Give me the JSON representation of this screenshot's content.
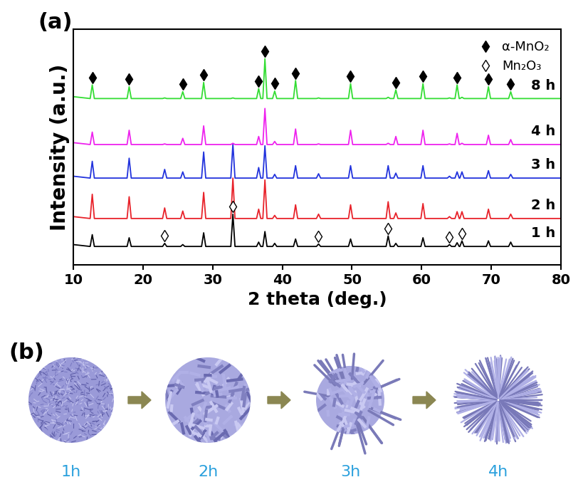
{
  "chart_data": {
    "type": "line",
    "x_label": "2 theta (deg.)",
    "y_label": "Intensity (a.u.)",
    "xlim": [
      10,
      80
    ],
    "xticks": [
      10,
      20,
      30,
      40,
      50,
      60,
      70,
      80
    ],
    "ylim": [
      0,
      38
    ],
    "yticks": [],
    "tick_labels": "x",
    "grid": false,
    "legend": "upper right",
    "x": [
      10,
      12.4,
      12.7,
      13.0,
      17.7,
      18.0,
      18.3,
      22.8,
      23.1,
      23.4,
      25.4,
      25.7,
      26.0,
      28.4,
      28.7,
      29.0,
      32.6,
      32.9,
      33.2,
      36.3,
      36.6,
      36.9,
      37.2,
      37.5,
      37.8,
      38.6,
      38.9,
      39.2,
      41.6,
      41.9,
      42.2,
      44.9,
      45.2,
      45.5,
      49.5,
      49.8,
      50.1,
      54.9,
      55.2,
      55.5,
      56.0,
      56.3,
      56.6,
      59.9,
      60.2,
      60.5,
      63.7,
      64.0,
      64.3,
      64.8,
      65.1,
      65.4,
      65.5,
      65.8,
      66.1,
      69.3,
      69.6,
      69.9,
      72.5,
      72.8,
      73.1,
      80
    ],
    "series": [
      {
        "name": "1 h",
        "color": "#000000",
        "values": [
          3.3,
          3.0,
          4.9,
          3.0,
          3.0,
          4.4,
          3.0,
          3.0,
          3.5,
          3.0,
          3.0,
          3.3,
          3.0,
          3.0,
          5.2,
          3.0,
          3.0,
          8.2,
          3.0,
          3.0,
          3.7,
          3.0,
          3.0,
          5.4,
          3.0,
          3.0,
          3.5,
          3.0,
          3.0,
          4.2,
          3.0,
          3.0,
          3.4,
          3.0,
          3.0,
          4.2,
          3.0,
          3.0,
          4.7,
          3.0,
          3.0,
          3.5,
          3.0,
          3.0,
          4.4,
          3.0,
          3.0,
          3.3,
          3.0,
          3.0,
          3.6,
          3.0,
          3.0,
          3.9,
          3.0,
          3.0,
          3.9,
          3.0,
          3.0,
          3.7,
          3.0,
          3.0
        ]
      },
      {
        "name": "2 h",
        "color": "#e8222a",
        "values": [
          7.8,
          7.5,
          11.4,
          7.5,
          7.5,
          11.0,
          7.5,
          7.5,
          9.2,
          7.5,
          7.5,
          8.7,
          7.5,
          7.5,
          11.7,
          7.5,
          7.5,
          14.0,
          7.5,
          7.5,
          9.0,
          7.5,
          7.5,
          13.7,
          7.5,
          7.5,
          8.0,
          7.5,
          7.5,
          9.7,
          7.5,
          7.5,
          8.2,
          7.5,
          7.5,
          9.7,
          7.5,
          7.5,
          10.2,
          7.5,
          7.5,
          8.4,
          7.5,
          7.5,
          9.9,
          7.5,
          7.5,
          7.8,
          7.5,
          7.5,
          8.6,
          7.5,
          7.5,
          8.6,
          7.5,
          7.5,
          9.0,
          7.5,
          7.5,
          8.2,
          7.5,
          7.5
        ]
      },
      {
        "name": "3 h",
        "color": "#2233dd",
        "values": [
          14.3,
          14.0,
          16.7,
          14.0,
          14.0,
          17.2,
          14.0,
          14.0,
          15.4,
          14.0,
          14.0,
          15.0,
          14.0,
          14.0,
          18.2,
          14.0,
          14.0,
          19.5,
          14.0,
          14.0,
          15.7,
          14.0,
          14.0,
          19.2,
          14.0,
          14.0,
          14.6,
          14.0,
          14.0,
          16.0,
          14.0,
          14.0,
          14.7,
          14.0,
          14.0,
          16.0,
          14.0,
          14.0,
          16.0,
          14.0,
          14.0,
          14.8,
          14.0,
          14.0,
          16.0,
          14.0,
          14.0,
          14.3,
          14.0,
          14.0,
          15.0,
          14.0,
          14.0,
          15.0,
          14.0,
          14.0,
          15.2,
          14.0,
          14.0,
          14.6,
          14.0,
          14.0
        ]
      },
      {
        "name": "4 h",
        "color": "#ee22ee",
        "values": [
          19.7,
          19.4,
          21.4,
          19.4,
          19.4,
          21.7,
          19.4,
          19.4,
          19.5,
          19.4,
          19.4,
          20.4,
          19.4,
          19.4,
          22.4,
          19.4,
          19.4,
          19.6,
          19.4,
          19.4,
          20.7,
          19.4,
          19.4,
          25.2,
          19.4,
          19.4,
          19.9,
          19.4,
          19.4,
          21.9,
          19.4,
          19.4,
          19.5,
          19.4,
          19.4,
          21.7,
          19.4,
          19.4,
          19.6,
          19.4,
          19.4,
          20.7,
          19.4,
          19.4,
          21.7,
          19.4,
          19.4,
          19.5,
          19.4,
          19.4,
          21.2,
          19.4,
          19.4,
          19.6,
          19.4,
          19.4,
          20.9,
          19.4,
          19.4,
          20.2,
          19.4,
          19.4
        ]
      },
      {
        "name": "8 h",
        "color": "#33dd33",
        "values": [
          27.1,
          26.8,
          29.0,
          26.8,
          26.8,
          28.7,
          26.8,
          26.8,
          26.9,
          26.8,
          26.8,
          27.9,
          26.8,
          26.8,
          29.4,
          26.8,
          26.8,
          26.9,
          26.8,
          26.8,
          28.4,
          26.8,
          26.8,
          33.2,
          26.8,
          26.8,
          28.0,
          26.8,
          26.8,
          29.7,
          26.8,
          26.8,
          26.9,
          26.8,
          26.8,
          29.2,
          26.8,
          26.8,
          27.0,
          26.8,
          26.8,
          28.2,
          26.8,
          26.8,
          29.2,
          26.8,
          26.8,
          26.9,
          26.8,
          26.8,
          29.0,
          26.8,
          26.8,
          27.0,
          26.8,
          26.8,
          28.7,
          26.8,
          26.8,
          27.9,
          26.8,
          26.8
        ]
      }
    ],
    "peak_markers": [
      {
        "name": "α-MnO₂",
        "marker": "diamond",
        "series": "8 h",
        "x": [
          12.7,
          18.0,
          25.7,
          28.7,
          36.6,
          37.5,
          38.9,
          41.9,
          49.8,
          56.3,
          60.2,
          65.1,
          69.6,
          72.8
        ]
      },
      {
        "name": "Mn₂O₃",
        "marker": "open diamond",
        "series": "1 h",
        "x": [
          23.1,
          32.9,
          45.2,
          55.2,
          64.0,
          65.8
        ]
      }
    ]
  },
  "figure_labels": [
    "(a)",
    "(b)"
  ],
  "diagram": {
    "stages": [
      "1h",
      "2h",
      "3h",
      "4h"
    ]
  }
}
